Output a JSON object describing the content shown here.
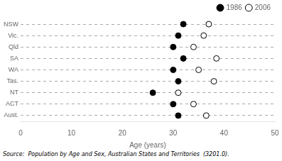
{
  "chart_data": {
    "type": "scatter",
    "orientation": "horizontal",
    "categories": [
      "NSW",
      "Vic.",
      "Qld",
      "SA",
      "WA",
      "Tas.",
      "NT",
      "ACT",
      "Aust."
    ],
    "series": [
      {
        "name": "1986",
        "color": "black",
        "marker": "circle",
        "values": [
          32.0,
          31.0,
          30.0,
          32.0,
          30.0,
          31.0,
          26.0,
          30.0,
          31.0
        ]
      },
      {
        "name": "2006",
        "color": "white",
        "marker": "circle",
        "values": [
          37.0,
          36.0,
          34.0,
          38.5,
          35.0,
          38.0,
          31.0,
          34.0,
          36.5
        ]
      }
    ],
    "xlabel": "Age (years)",
    "xlim": [
      0,
      50
    ],
    "xticks": [
      0,
      10,
      20,
      30,
      40,
      50
    ],
    "grid": "y",
    "legend": "upper right",
    "annotations": [
      "Source:  Population by Age and Sex, Australian States and Territories  (3201.0)."
    ]
  }
}
